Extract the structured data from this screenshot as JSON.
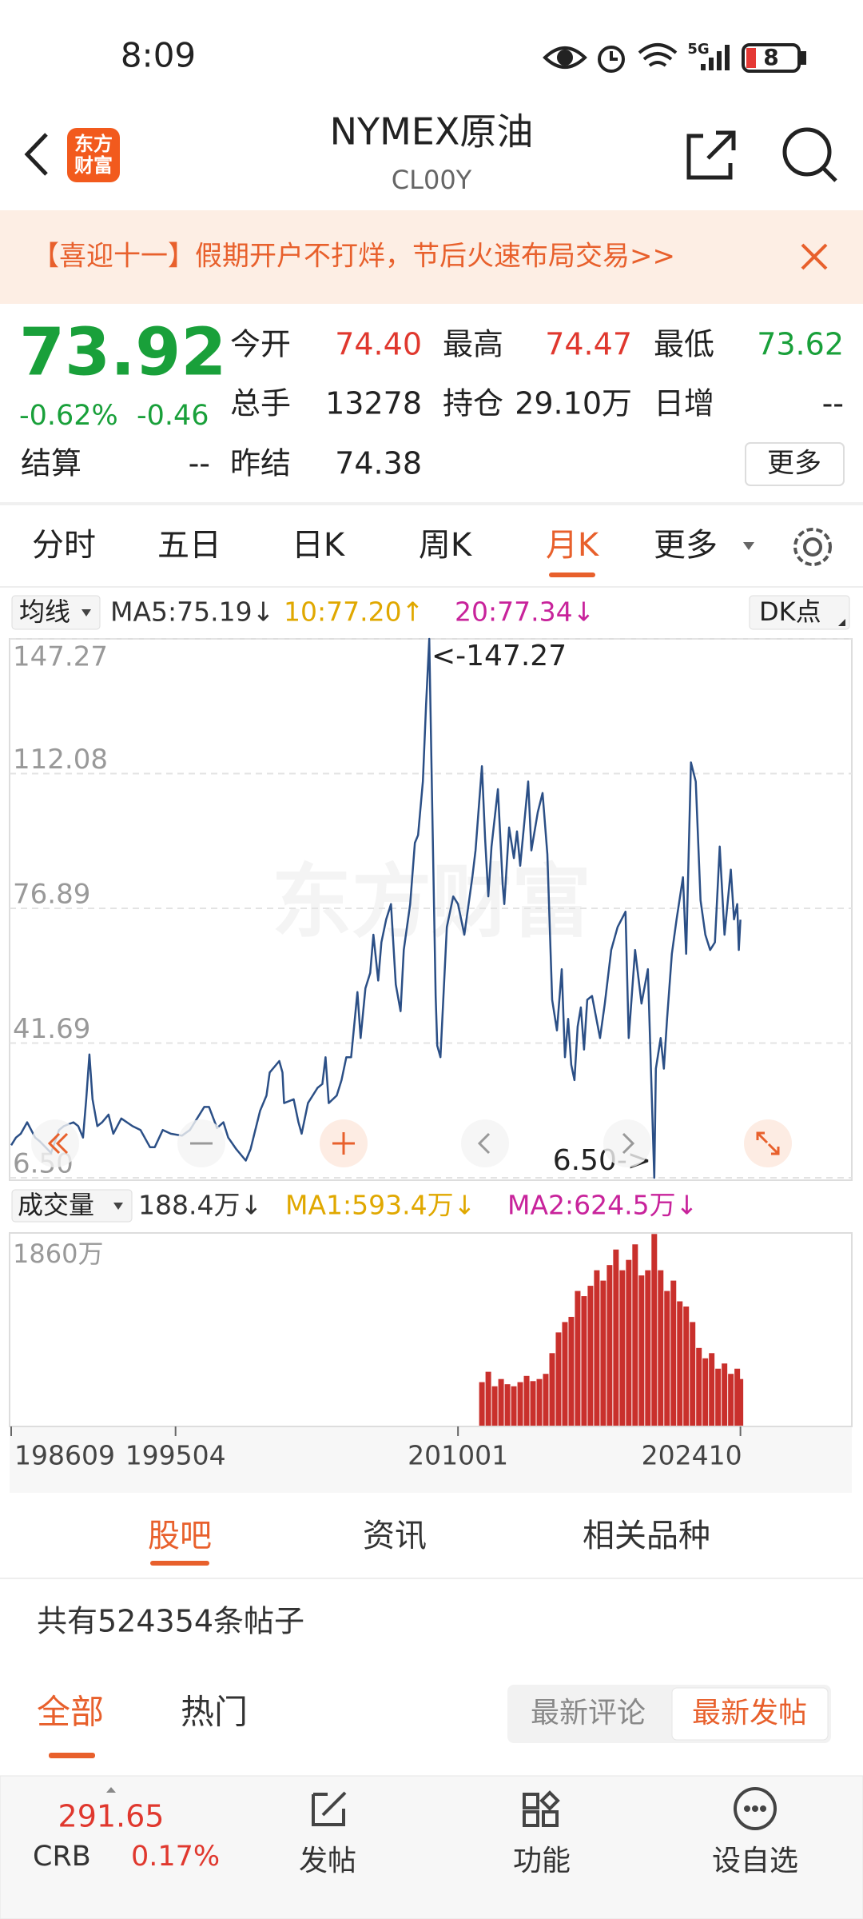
{
  "status_bar": {
    "time": "8:09",
    "network": "5G",
    "battery": "8"
  },
  "header": {
    "logo": [
      "东方",
      "财富"
    ],
    "title": "NYMEX原油",
    "code": "CL00Y"
  },
  "banner": {
    "text": "【喜迎十一】假期开户不打烊，节后火速布局交易>>"
  },
  "quote": {
    "price": "73.92",
    "change_percent": "-0.62%",
    "change": "-0.46",
    "fields": [
      {
        "label": "今开",
        "value": "74.40"
      },
      {
        "label": "最高",
        "value": "74.47"
      },
      {
        "label": "最低",
        "value": "73.62"
      },
      {
        "label": "总手",
        "value": "13278"
      },
      {
        "label": "持仓",
        "value": "29.10万"
      },
      {
        "label": "日增",
        "value": "--"
      },
      {
        "label": "结算",
        "value": "--"
      },
      {
        "label": "昨结",
        "value": "74.38"
      }
    ],
    "more": "更多"
  },
  "period_tabs": [
    "分时",
    "五日",
    "日K",
    "周K",
    "月K",
    "更多"
  ],
  "price_indicator": {
    "selector": "均线",
    "items": [
      {
        "text": "MA5:75.19↓",
        "color": "#333333"
      },
      {
        "text": "10:77.20↑",
        "color": "#e0a800"
      },
      {
        "text": "20:77.34↓",
        "color": "#c8239b"
      }
    ],
    "dk": "DK点"
  },
  "volume_indicator": {
    "selector": "成交量",
    "items": [
      {
        "text": "188.4万↓",
        "color": "#333333"
      },
      {
        "text": "MA1:593.4万↓",
        "color": "#e0a800"
      },
      {
        "text": "MA2:624.5万↓",
        "color": "#c8239b"
      }
    ]
  },
  "chart_data": [
    {
      "type": "line",
      "color": "#2b4f86",
      "watermark": "东方财富",
      "annotations": [
        "<-147.27",
        "6.50->"
      ],
      "ylim": [
        6.5,
        147.27
      ],
      "yticks": [
        147.27,
        112.08,
        76.89,
        41.69,
        {
          "value": 6.5,
          "label": "6.50"
        }
      ],
      "grid": true,
      "x": [
        "198609",
        "198612",
        "198703",
        "198707",
        "198712",
        "198803",
        "198810",
        "198903",
        "198906",
        "198912",
        "199003",
        "199006",
        "199008",
        "199010",
        "199012",
        "199103",
        "199106",
        "199110",
        "199201",
        "199206",
        "199301",
        "199306",
        "199312",
        "199403",
        "199408",
        "199501",
        "199508",
        "199601",
        "199610",
        "199701",
        "199706",
        "199710",
        "199801",
        "199806",
        "199812",
        "199903",
        "199906",
        "199909",
        "200001",
        "200003",
        "200009",
        "200011",
        "200012",
        "200106",
        "200109",
        "200111",
        "200203",
        "200209",
        "200212",
        "200302",
        "200304",
        "200309",
        "200312",
        "200403",
        "200406",
        "200410",
        "200412",
        "200503",
        "200506",
        "200508",
        "200511",
        "200601",
        "200604",
        "200607",
        "200610",
        "200701",
        "200703",
        "200707",
        "200710",
        "200712",
        "200803",
        "200805",
        "200807",
        "200809",
        "200811",
        "200812",
        "200902",
        "200906",
        "200910",
        "201001",
        "201005",
        "201010",
        "201012",
        "201104",
        "201106",
        "201108",
        "201110",
        "201202",
        "201205",
        "201206",
        "201209",
        "201212",
        "201302",
        "201304",
        "201309",
        "201311",
        "201403",
        "201406",
        "201409",
        "201412",
        "201503",
        "201506",
        "201508",
        "201510",
        "201512",
        "201602",
        "201604",
        "201606",
        "201608",
        "201610",
        "201701",
        "201706",
        "201709",
        "201801",
        "201805",
        "201810",
        "201812",
        "201904",
        "201908",
        "201912",
        "202003",
        "202004",
        "202005",
        "202008",
        "202010",
        "202012",
        "202103",
        "202106",
        "202110",
        "202112",
        "202203",
        "202206",
        "202209",
        "202212",
        "202303",
        "202306",
        "202309",
        "202312",
        "202404",
        "202406",
        "202408",
        "202409",
        "202410"
      ],
      "values": [
        15,
        17,
        18,
        21,
        17,
        16,
        13,
        19,
        20,
        21,
        20,
        17,
        27,
        38.7,
        27,
        20,
        21,
        23,
        18,
        22,
        20,
        19,
        14.5,
        14.5,
        19,
        18,
        17.5,
        19,
        25,
        25,
        19.5,
        21,
        17,
        14,
        11,
        14,
        19,
        24,
        28,
        34,
        37,
        34,
        26,
        27,
        21,
        18,
        26,
        30,
        31,
        38,
        26,
        28,
        32,
        38,
        38,
        55,
        43,
        56,
        60,
        70,
        58,
        68,
        74,
        78,
        57,
        50,
        66,
        78,
        94,
        96,
        110,
        130,
        147.27,
        100,
        54,
        41,
        38,
        72,
        80,
        78,
        70,
        85,
        92,
        114,
        95,
        80,
        93,
        108,
        83,
        78,
        98,
        90,
        97,
        88,
        110,
        92,
        102,
        107,
        91,
        53,
        45,
        61,
        38,
        48,
        36,
        32,
        46,
        51,
        40,
        53,
        54,
        43,
        52,
        66,
        72,
        76,
        43,
        66,
        52,
        61,
        20,
        6.5,
        35,
        43,
        35,
        48,
        65,
        74,
        85,
        65,
        115,
        110,
        79,
        70,
        66,
        68,
        93,
        70,
        87,
        74,
        78,
        66,
        73.92
      ]
    },
    {
      "type": "bar",
      "color": "#c9302c",
      "ylim": [
        0,
        1860
      ],
      "yticks": [
        {
          "value": 1860,
          "label": "1860万"
        }
      ],
      "xticks": [
        "198609",
        "199504",
        "201001",
        "202410"
      ],
      "x": [
        "201104",
        "201108",
        "201112",
        "201204",
        "201208",
        "201212",
        "201304",
        "201308",
        "201312",
        "201404",
        "201408",
        "201412",
        "201504",
        "201508",
        "201512",
        "201604",
        "201608",
        "201612",
        "201704",
        "201708",
        "201712",
        "201804",
        "201808",
        "201812",
        "201904",
        "201908",
        "201912",
        "202004",
        "202008",
        "202012",
        "202104",
        "202108",
        "202112",
        "202204",
        "202208",
        "202212",
        "202304",
        "202308",
        "202312",
        "202404",
        "202408",
        "202410"
      ],
      "values": [
        420,
        520,
        380,
        450,
        400,
        380,
        420,
        480,
        430,
        450,
        500,
        700,
        900,
        1000,
        1050,
        1300,
        1250,
        1350,
        1500,
        1400,
        1550,
        1700,
        1500,
        1600,
        1750,
        1450,
        1500,
        1850,
        1500,
        1300,
        1400,
        1200,
        1150,
        1000,
        750,
        650,
        700,
        550,
        600,
        500,
        550,
        450
      ]
    }
  ],
  "content_tabs": [
    "股吧",
    "资讯",
    "相关品种"
  ],
  "post_count": "共有524354条帖子",
  "post_filters": [
    "全部",
    "热门"
  ],
  "sort_options": [
    "最新评论",
    "最新发帖"
  ],
  "bottom_bar": {
    "crb_value": "291.65",
    "crb_name": "CRB",
    "crb_change": "0.17%",
    "nav": [
      "发帖",
      "功能",
      "设自选"
    ]
  }
}
